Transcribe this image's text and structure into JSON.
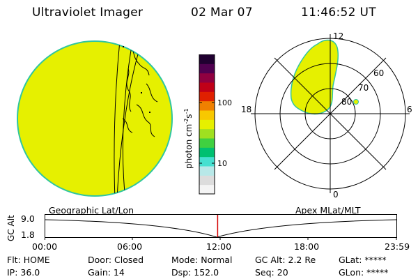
{
  "header": {
    "instrument": "Ultraviolet Imager",
    "date": "02 Mar 07",
    "time": "11:46:52 UT"
  },
  "colors": {
    "emission": "#e6f000",
    "disk_edge": "#2fc6a0",
    "marker": "#d40000"
  },
  "colorbar": {
    "label": "photon cm",
    "label_sup1": "-2",
    "label_s": "s",
    "label_sup2": "-1",
    "ticks": [
      "100",
      "10"
    ],
    "colors": [
      "#f4f4f4",
      "#dcdcdc",
      "#b8e8e8",
      "#46e0d0",
      "#00c070",
      "#40d040",
      "#a0e020",
      "#e6f000",
      "#f8c800",
      "#f08000",
      "#e02000",
      "#c00018",
      "#900040",
      "#500050",
      "#200030"
    ]
  },
  "polar": {
    "mlt_labels": {
      "top": "12",
      "left": "18",
      "right": "6",
      "bottom": "0"
    },
    "lat_labels": [
      "60",
      "70",
      "80"
    ]
  },
  "timeline": {
    "left_label": "Geographic Lat/Lon",
    "right_label": "Apex MLat/MLT",
    "axis_label": "GC Alt",
    "y_ticks": [
      "9.0",
      "1.8"
    ],
    "x_ticks": [
      "00:00",
      "06:00",
      "12:00",
      "18:00",
      "23:59"
    ],
    "marker_fraction": 0.4909
  },
  "info": {
    "flt": "Flt: HOME",
    "door": "Door: Closed",
    "mode": "Mode: Normal",
    "gc_alt": "GC Alt: 2.2 Re",
    "glat": "GLat: *****",
    "ip": "IP: 36.0",
    "gain": "Gain: 14",
    "dsp": "Dsp:  152.0",
    "seq": "Seq: 20",
    "glon": "GLon: *****"
  }
}
